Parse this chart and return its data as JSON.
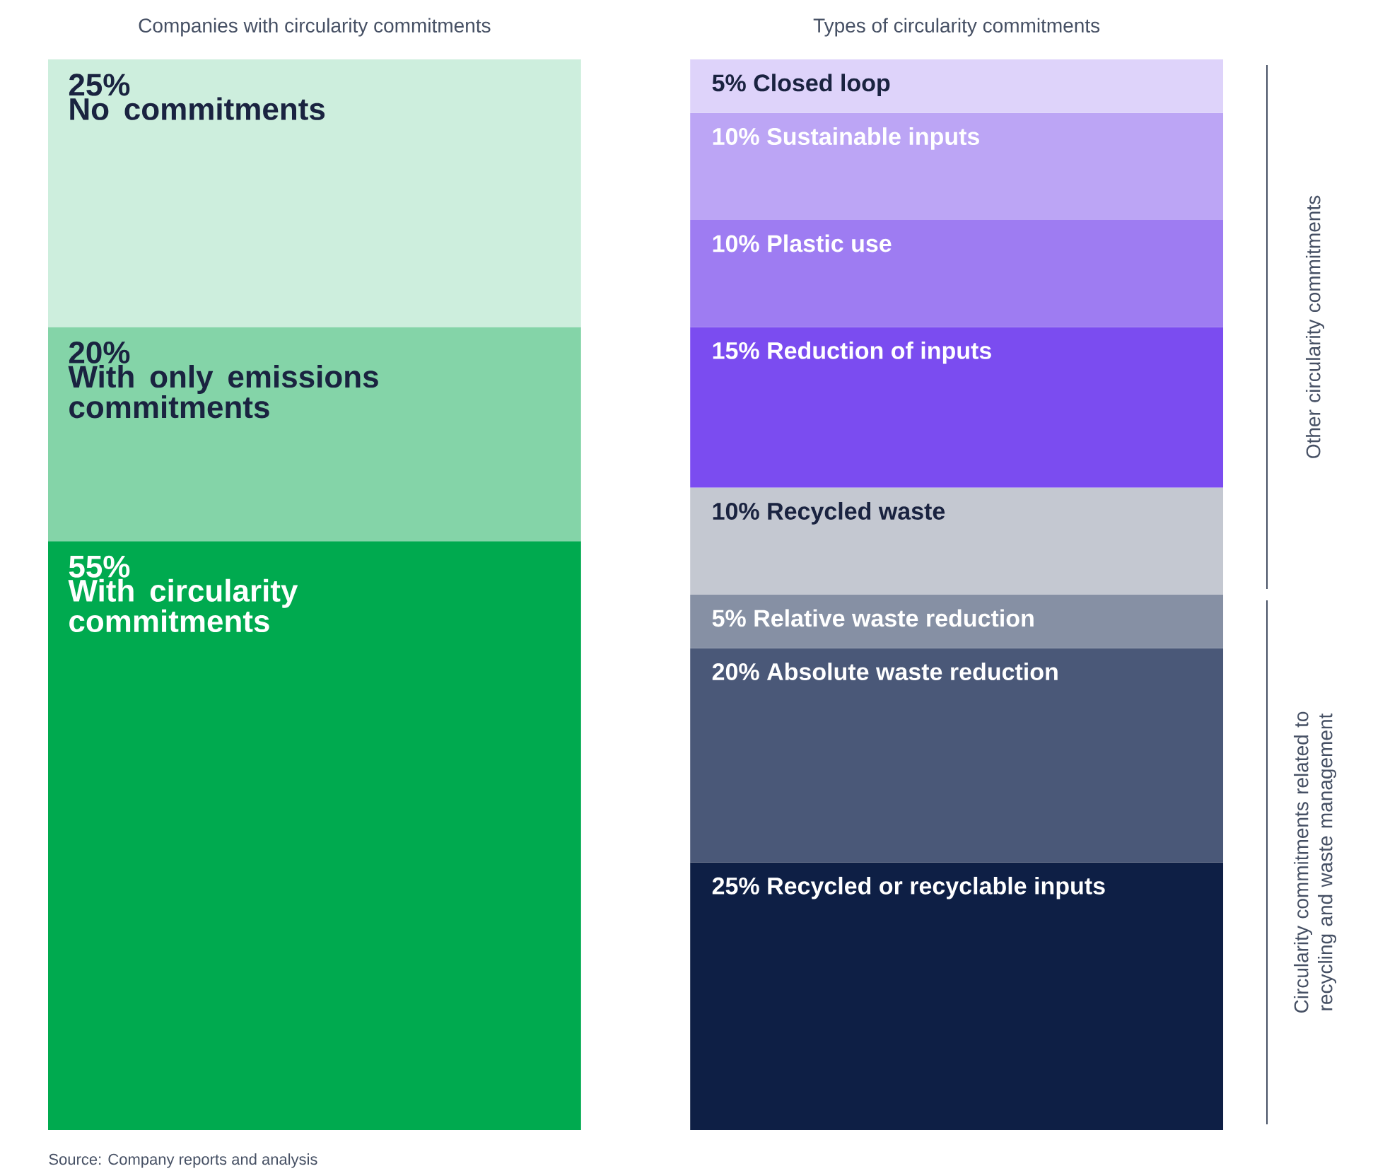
{
  "chart_data": {
    "type": "bar",
    "stacked": true,
    "categories": [
      "Companies with circularity commitments",
      "Types of circularity commitments"
    ],
    "series": [
      {
        "name": "With circularity commitments",
        "color": "#00aa4f",
        "values": [
          55,
          null
        ],
        "value_labels": [
          "55%",
          null
        ]
      },
      {
        "name": "With only emissions commitments",
        "color": "#84d4a8",
        "values": [
          20,
          null
        ],
        "value_labels": [
          "20%",
          null
        ]
      },
      {
        "name": "No commitments",
        "color": "#cdeedd",
        "values": [
          25,
          null
        ],
        "value_labels": [
          "25%",
          null
        ]
      },
      {
        "name": "Recycled or recyclable inputs",
        "color": "#0e1f45",
        "values": [
          null,
          25
        ],
        "value_labels": [
          null,
          "25%"
        ]
      },
      {
        "name": "Absolute waste reduction",
        "color": "#4a5878",
        "values": [
          null,
          20
        ],
        "value_labels": [
          null,
          "20%"
        ]
      },
      {
        "name": "Relative waste reduction",
        "color": "#8690a4",
        "values": [
          null,
          5
        ],
        "value_labels": [
          null,
          "5%"
        ]
      },
      {
        "name": "Recycled waste",
        "color": "#c4c8d1",
        "values": [
          null,
          10
        ],
        "value_labels": [
          null,
          "10%"
        ]
      },
      {
        "name": "Reduction of inputs",
        "color": "#7b4cf0",
        "values": [
          null,
          15
        ],
        "value_labels": [
          null,
          "15%"
        ]
      },
      {
        "name": "Plastic use",
        "color": "#9e7cf2",
        "values": [
          null,
          10
        ],
        "value_labels": [
          null,
          "10%"
        ]
      },
      {
        "name": "Sustainable inputs",
        "color": "#bca5f5",
        "values": [
          null,
          10
        ],
        "value_labels": [
          null,
          "10%"
        ]
      },
      {
        "name": "Closed loop",
        "color": "#ded3fa",
        "values": [
          null,
          5
        ],
        "value_labels": [
          null,
          "5%"
        ]
      }
    ],
    "annotations": [
      "Source: Company reports and analysis",
      "Other circularity commitments",
      "Circularity commitments related to recycling and waste management"
    ]
  }
}
